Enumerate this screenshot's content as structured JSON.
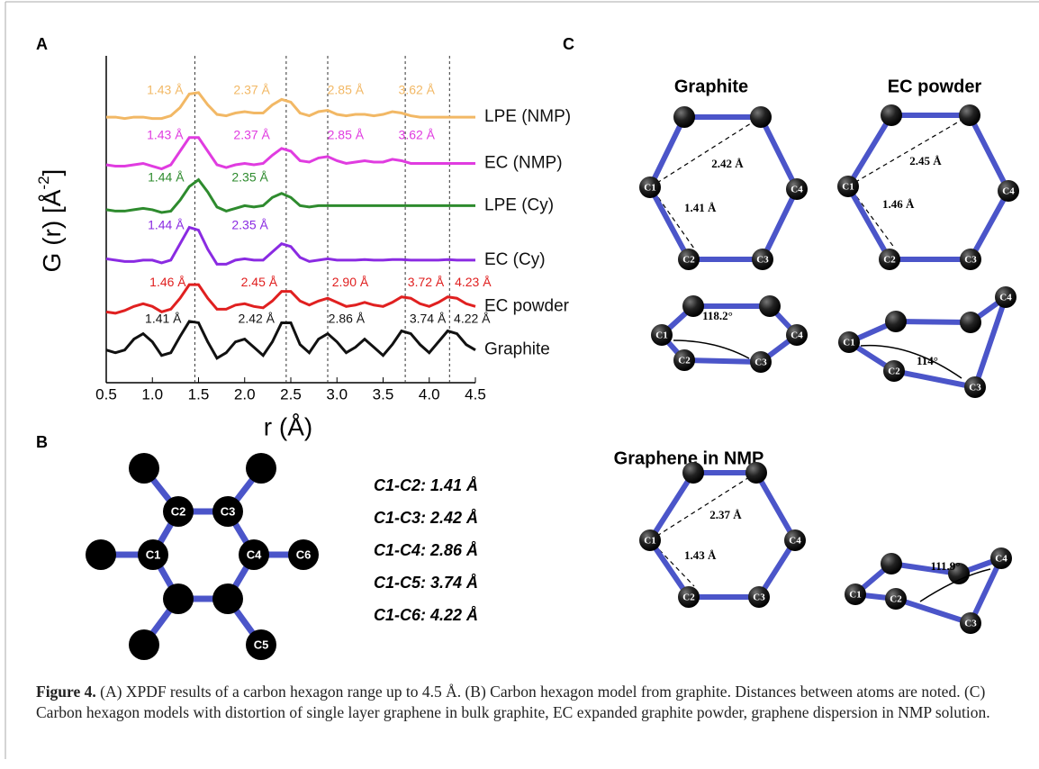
{
  "panel_labels": [
    "A",
    "B",
    "C"
  ],
  "chart_data": {
    "type": "line",
    "xlabel": "r (Å)",
    "ylabel": [
      "G (r) [Å",
      "-2",
      "]"
    ],
    "xlim": [
      0.5,
      4.5
    ],
    "ylim": [
      0,
      12
    ],
    "xticks": [
      0.5,
      {
        "value": 1,
        "label": "1.0"
      },
      1.5,
      {
        "value": 2,
        "label": "2.0"
      },
      2.5,
      {
        "value": 3,
        "label": "3.0"
      },
      3.5,
      {
        "value": 4,
        "label": "4.0"
      },
      4.5
    ],
    "reference_lines": [
      1.46,
      2.45,
      2.9,
      3.74,
      4.22
    ],
    "x": [
      0.5,
      0.6,
      0.7,
      0.8,
      0.9,
      1.0,
      1.1,
      1.2,
      1.3,
      1.4,
      1.5,
      1.6,
      1.7,
      1.8,
      1.9,
      2.0,
      2.1,
      2.2,
      2.3,
      2.4,
      2.5,
      2.6,
      2.7,
      2.8,
      2.9,
      3.0,
      3.1,
      3.2,
      3.3,
      3.4,
      3.5,
      3.6,
      3.7,
      3.8,
      3.9,
      4.0,
      4.1,
      4.2,
      4.3,
      4.4,
      4.5
    ],
    "series": [
      {
        "name": "LPE (NMP)",
        "color": "#f2b865",
        "values": [
          9.75,
          9.75,
          9.7,
          9.75,
          9.75,
          9.7,
          9.7,
          9.8,
          10.1,
          10.6,
          10.65,
          10.2,
          9.85,
          9.8,
          9.9,
          9.95,
          9.9,
          9.9,
          10.2,
          10.4,
          10.3,
          9.9,
          9.8,
          9.95,
          10.0,
          9.85,
          9.8,
          9.85,
          9.85,
          9.8,
          9.85,
          9.95,
          9.9,
          9.8,
          9.75,
          9.75,
          9.75,
          9.75,
          9.75,
          9.75,
          9.75
        ],
        "peaks": [
          {
            "value": 1.43,
            "label": "1.43 Å"
          },
          {
            "value": 2.37,
            "label": "2.37 Å"
          },
          {
            "value": 2.85,
            "label": "2.85 Å"
          },
          {
            "value": 3.62,
            "label": "3.62 Å"
          }
        ]
      },
      {
        "name": "EC (NMP)",
        "color": "#e03ce0",
        "values": [
          8.0,
          7.95,
          7.95,
          8.0,
          8.05,
          7.95,
          7.85,
          8.0,
          8.5,
          9.0,
          9.0,
          8.5,
          8.0,
          7.9,
          8.0,
          8.05,
          8.0,
          8.05,
          8.35,
          8.6,
          8.5,
          8.15,
          8.1,
          8.25,
          8.3,
          8.15,
          8.05,
          8.1,
          8.15,
          8.1,
          8.1,
          8.2,
          8.15,
          8.05,
          8.05,
          8.05,
          8.05,
          8.05,
          8.05,
          8.05,
          8.05
        ],
        "peaks": [
          {
            "value": 1.43,
            "label": "1.43 Å"
          },
          {
            "value": 2.37,
            "label": "2.37 Å"
          },
          {
            "value": 2.85,
            "label": "2.85 Å"
          },
          {
            "value": 3.62,
            "label": "3.62 Å"
          }
        ]
      },
      {
        "name": "LPE (Cy)",
        "color": "#2e8b2e",
        "values": [
          6.35,
          6.3,
          6.3,
          6.35,
          6.4,
          6.35,
          6.25,
          6.3,
          6.7,
          7.2,
          7.45,
          7.0,
          6.45,
          6.3,
          6.4,
          6.5,
          6.45,
          6.5,
          6.8,
          6.95,
          6.8,
          6.5,
          6.45,
          6.5,
          6.5,
          6.5,
          6.5,
          6.5,
          6.5,
          6.5,
          6.5,
          6.5,
          6.5,
          6.5,
          6.5,
          6.5,
          6.5,
          6.5,
          6.5,
          6.5,
          6.5
        ],
        "peaks": [
          {
            "value": 1.44,
            "label": "1.44 Å"
          },
          {
            "value": 2.35,
            "label": "2.35 Å"
          }
        ]
      },
      {
        "name": "EC (Cy)",
        "color": "#8a2be2",
        "values": [
          4.55,
          4.5,
          4.45,
          4.45,
          4.5,
          4.5,
          4.4,
          4.5,
          5.1,
          5.7,
          5.6,
          4.9,
          4.35,
          4.35,
          4.5,
          4.55,
          4.5,
          4.5,
          4.8,
          5.1,
          5.0,
          4.6,
          4.45,
          4.5,
          4.55,
          4.5,
          4.5,
          4.5,
          4.52,
          4.5,
          4.5,
          4.52,
          4.52,
          4.5,
          4.5,
          4.5,
          4.5,
          4.52,
          4.5,
          4.5,
          4.5
        ],
        "peaks": [
          {
            "value": 1.44,
            "label": "1.44 Å"
          },
          {
            "value": 2.35,
            "label": "2.35 Å"
          }
        ]
      },
      {
        "name": "EC powder",
        "color": "#e02020",
        "values": [
          2.6,
          2.55,
          2.65,
          2.8,
          2.9,
          2.8,
          2.6,
          2.7,
          3.1,
          3.6,
          3.6,
          3.1,
          2.7,
          2.7,
          2.85,
          2.9,
          2.8,
          2.75,
          3.0,
          3.35,
          3.35,
          3.0,
          2.85,
          3.0,
          3.1,
          2.95,
          2.8,
          2.85,
          2.95,
          2.85,
          2.8,
          2.95,
          3.15,
          3.1,
          2.9,
          2.8,
          2.95,
          3.15,
          3.1,
          2.9,
          2.8
        ],
        "peaks": [
          {
            "value": 1.46,
            "label": "1.46 Å"
          },
          {
            "value": 2.45,
            "label": "2.45 Å"
          },
          {
            "value": 2.9,
            "label": "2.90 Å"
          },
          {
            "value": 3.72,
            "label": "3.72 Å"
          },
          {
            "value": 4.23,
            "label": "4.23 Å"
          }
        ]
      },
      {
        "name": "Graphite",
        "color": "#111111",
        "values": [
          1.2,
          1.1,
          1.2,
          1.6,
          1.8,
          1.5,
          1.0,
          1.1,
          1.7,
          2.25,
          2.2,
          1.5,
          0.9,
          1.1,
          1.5,
          1.6,
          1.3,
          1.0,
          1.5,
          2.2,
          2.2,
          1.4,
          1.1,
          1.6,
          1.8,
          1.5,
          1.1,
          1.3,
          1.6,
          1.3,
          1.0,
          1.4,
          1.9,
          1.8,
          1.4,
          1.1,
          1.5,
          1.9,
          1.8,
          1.4,
          1.2
        ],
        "peaks": [
          {
            "value": 1.41,
            "label": "1.41 Å"
          },
          {
            "value": 2.42,
            "label": "2.42 Å"
          },
          {
            "value": 2.86,
            "label": "2.86 Å"
          },
          {
            "value": 3.74,
            "label": "3.74 Å"
          },
          {
            "value": 4.22,
            "label": "4.22 Å"
          }
        ]
      }
    ]
  },
  "panel_b": {
    "atoms": [
      "C1",
      "C2",
      "C3",
      "C4",
      "C5",
      "C6"
    ],
    "distances": [
      "C1-C2: 1.41 Å",
      "C1-C3: 2.42 Å",
      "C1-C4: 2.86 Å",
      "C1-C5: 3.74 Å",
      "C1-C6: 4.22 Å"
    ]
  },
  "panel_c": {
    "models": [
      {
        "title": "Graphite",
        "long": "2.42 Å",
        "short": "1.41 Å",
        "angle": "118.2°"
      },
      {
        "title": "EC powder",
        "long": "2.45 Å",
        "short": "1.46 Å",
        "angle": "114°"
      },
      {
        "title": "Graphene in NMP",
        "long": "2.37 Å",
        "short": "1.43 Å",
        "angle": "111.9°"
      }
    ]
  },
  "caption": {
    "label": "Figure 4.",
    "text": " (A) XPDF results of a carbon hexagon range up to 4.5 Å. (B) Carbon hexagon model from graphite. Distances between atoms are noted. (C) Carbon hexagon models with distortion of single layer graphene in bulk graphite, EC expanded graphite powder, graphene dispersion in NMP solution."
  }
}
